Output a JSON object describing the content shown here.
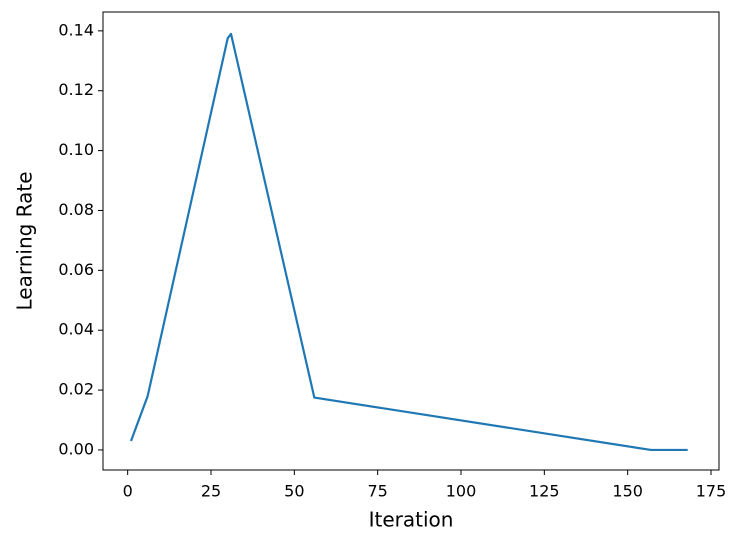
{
  "chart_data": {
    "type": "line",
    "x_label": "Iteration",
    "y_label": "Learning Rate",
    "x": [
      1,
      6,
      30,
      31,
      56,
      157,
      168
    ],
    "series": [
      {
        "color": "#1f77b4",
        "values": [
          0.003,
          0.018,
          0.1375,
          0.139,
          0.0175,
          0.0,
          0.0
        ]
      }
    ],
    "xlim": [
      -7.4,
      177.4
    ],
    "xticks": [
      0,
      25,
      50,
      75,
      100,
      125,
      150,
      175
    ],
    "ylim": [
      -0.0067,
      0.1463
    ],
    "yticks": [
      {
        "value": 0,
        "label": "0.00"
      },
      {
        "value": 0.02,
        "label": "0.02"
      },
      {
        "value": 0.04,
        "label": "0.04"
      },
      {
        "value": 0.06,
        "label": "0.06"
      },
      {
        "value": 0.08,
        "label": "0.08"
      },
      {
        "value": 0.1,
        "label": "0.10"
      },
      {
        "value": 0.12,
        "label": "0.12"
      },
      {
        "value": 0.14,
        "label": "0.14"
      }
    ],
    "grid": false
  }
}
